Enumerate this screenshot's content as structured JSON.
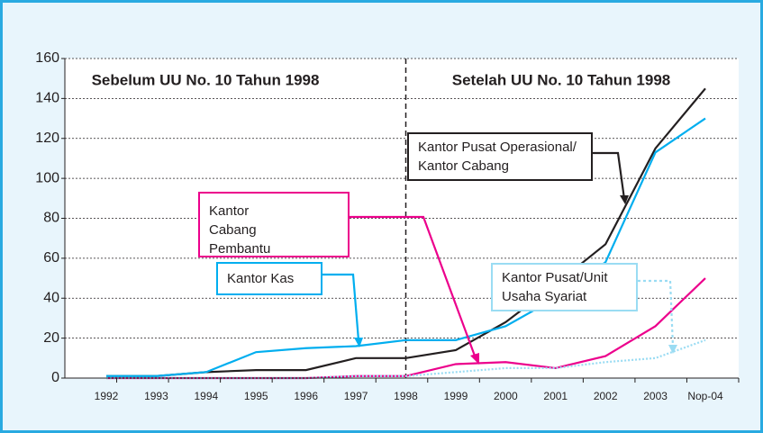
{
  "chart_data": {
    "type": "line",
    "categories": [
      "1992",
      "1993",
      "1994",
      "1995",
      "1996",
      "1997",
      "1998",
      "1999",
      "2000",
      "2001",
      "2002",
      "2003",
      "Nop-04"
    ],
    "series": [
      {
        "name": "Kantor Pusat Operasional/ Kantor Cabang",
        "color": "#231f20",
        "style": "solid",
        "values": [
          1,
          1,
          3,
          4,
          4,
          10,
          10,
          14,
          28,
          47,
          67,
          115,
          145
        ]
      },
      {
        "name": "Kantor Cabang Pembantu",
        "color": "#ec008c",
        "style": "solid",
        "values": [
          0,
          0,
          0,
          0,
          0,
          1,
          1,
          7,
          8,
          5,
          11,
          26,
          50
        ]
      },
      {
        "name": "Kantor Kas",
        "color": "#00aeef",
        "style": "solid",
        "values": [
          1,
          1,
          3,
          13,
          15,
          16,
          19,
          19,
          26,
          40,
          58,
          113,
          130
        ]
      },
      {
        "name": "Kantor Pusat/Unit Usaha Syariat",
        "color": "#9adcf3",
        "style": "dotted",
        "values": [
          0,
          0,
          0,
          0,
          0,
          1,
          1,
          3,
          5,
          5,
          8,
          10,
          19
        ]
      }
    ],
    "annotations": [
      "Sebelum UU No. 10 Tahun 1998",
      "Setelah UU No. 10 Tahun 1998"
    ],
    "ylim": [
      0,
      160
    ],
    "yticks": [
      0,
      20,
      40,
      60,
      80,
      100,
      120,
      140,
      160
    ],
    "grid": true
  }
}
